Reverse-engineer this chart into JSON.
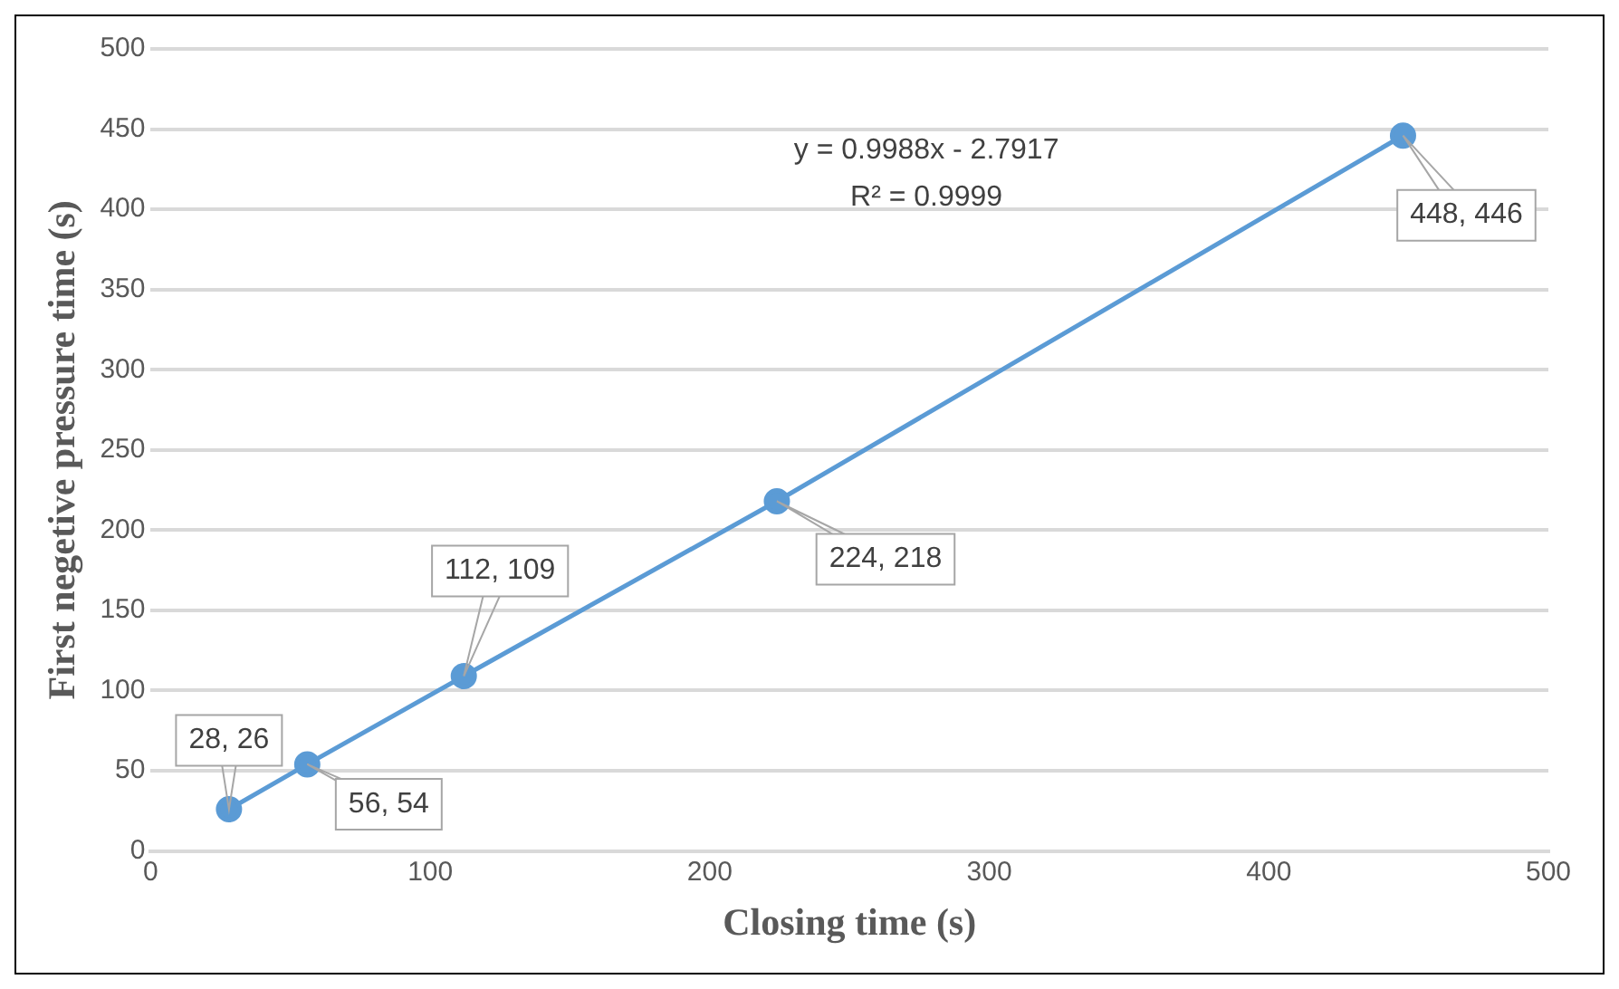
{
  "chart_data": {
    "type": "line",
    "xlabel": "Closing time (s)",
    "ylabel": "First negetive pressure time (s)",
    "x": [
      28,
      56,
      112,
      224,
      448
    ],
    "series": [
      {
        "color": "#5b9bd5",
        "values": [
          26,
          54,
          109,
          218,
          446
        ],
        "value_labels": [
          "28, 26",
          "56, 54",
          "112, 109",
          "224, 218",
          "448, 446"
        ]
      }
    ],
    "xlim": [
      0,
      500
    ],
    "xticks": [
      0,
      100,
      200,
      300,
      400,
      500
    ],
    "ylim": [
      0,
      500
    ],
    "yticks": [
      0,
      50,
      100,
      150,
      200,
      250,
      300,
      350,
      400,
      450,
      500
    ],
    "grid": "y",
    "legend": false,
    "marker": "circle",
    "line_style": "solid",
    "annotations": [
      "y = 0.9988x - 2.7917",
      "R² = 0.9999"
    ]
  }
}
